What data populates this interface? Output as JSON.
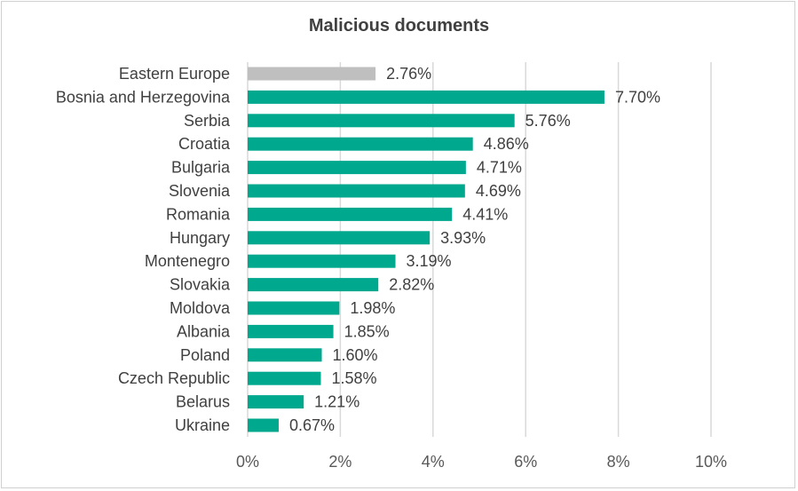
{
  "chart_data": {
    "type": "bar",
    "orientation": "horizontal",
    "title": "Malicious documents",
    "categories": [
      "Eastern Europe",
      "Bosnia and Herzegovina",
      "Serbia",
      "Croatia",
      "Bulgaria",
      "Slovenia",
      "Romania",
      "Hungary",
      "Montenegro",
      "Slovakia",
      "Moldova",
      "Albania",
      "Poland",
      "Czech Republic",
      "Belarus",
      "Ukraine"
    ],
    "values": [
      2.76,
      7.7,
      5.76,
      4.86,
      4.71,
      4.69,
      4.41,
      3.93,
      3.19,
      2.82,
      1.98,
      1.85,
      1.6,
      1.58,
      1.21,
      0.67
    ],
    "value_labels": [
      "2.76%",
      "7.70%",
      "5.76%",
      "4.86%",
      "4.71%",
      "4.69%",
      "4.41%",
      "3.93%",
      "3.19%",
      "2.82%",
      "1.98%",
      "1.85%",
      "1.60%",
      "1.58%",
      "1.21%",
      "0.67%"
    ],
    "xlim": [
      0,
      10
    ],
    "xticks": [
      0,
      2,
      4,
      6,
      8,
      10
    ],
    "xtick_labels": [
      "0%",
      "2%",
      "4%",
      "6%",
      "8%",
      "10%"
    ],
    "grid": "vertical",
    "legend": "none",
    "colors": {
      "highlight": "#bfbfbf",
      "default": "#00a88e",
      "gridline": "#d9d9d9"
    },
    "highlight_index": 0
  }
}
